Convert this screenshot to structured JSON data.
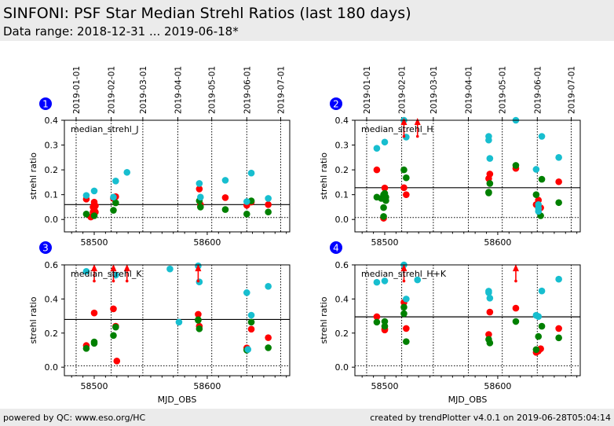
{
  "header": {
    "title": "SINFONI: PSF Star Median Strehl Ratios (last 180 days)",
    "subtitle": "Data range: 2018-12-31 ... 2019-06-18*"
  },
  "footer": {
    "left": "powered by QC: www.eso.org/HC",
    "right": "created by trendPlotter v4.0.1 on 2019-06-28T05:04:14"
  },
  "colors": {
    "series_red": "#ff0000",
    "series_green": "#008000",
    "series_cyan": "#17becf",
    "badge": "#0000ff"
  },
  "chart_data": [
    {
      "type": "scatter",
      "badge": "1",
      "title": "median_strehl_J",
      "xlabel": "",
      "ylabel": "strehl ratio",
      "xlim": [
        58473.6,
        58673
      ],
      "ylim": [
        -0.05,
        0.4
      ],
      "yticks": [
        0.0,
        0.1,
        0.2,
        0.3,
        0.4
      ],
      "ytick_labels": [
        "0.0",
        "0.1",
        "0.2",
        "0.3",
        "0.4"
      ],
      "xticks": [
        58500,
        58600
      ],
      "xtick_labels": [
        "58500",
        "58600"
      ],
      "top_date_ticks": [
        {
          "mjd": 58484,
          "label": "2019-01-01"
        },
        {
          "mjd": 58515,
          "label": "2019-02-01"
        },
        {
          "mjd": 58543,
          "label": "2019-03-01"
        },
        {
          "mjd": 58574,
          "label": "2019-04-01"
        },
        {
          "mjd": 58604,
          "label": "2019-05-01"
        },
        {
          "mjd": 58635,
          "label": "2019-06-01"
        },
        {
          "mjd": 58665,
          "label": "2019-07-01"
        }
      ],
      "median_line": 0.06,
      "reference_line": 0.008,
      "series": [
        {
          "name": "red",
          "points": [
            [
              58493,
              0.082
            ],
            [
              58497,
              0.01
            ],
            [
              58499,
              0.05
            ],
            [
              58500,
              0.07
            ],
            [
              58500,
              0.06
            ],
            [
              58501,
              0.055
            ],
            [
              58500,
              0.04
            ],
            [
              58499,
              0.03
            ],
            [
              58501,
              0.03
            ],
            [
              58517,
              0.085
            ],
            [
              58519,
              0.092
            ],
            [
              58593,
              0.123
            ],
            [
              58594,
              0.06
            ],
            [
              58616,
              0.088
            ],
            [
              58635,
              0.057
            ],
            [
              58639,
              0.07
            ],
            [
              58654,
              0.06
            ]
          ]
        },
        {
          "name": "green",
          "points": [
            [
              58493,
              0.022
            ],
            [
              58500,
              0.015
            ],
            [
              58517,
              0.037
            ],
            [
              58519,
              0.067
            ],
            [
              58593,
              0.075
            ],
            [
              58594,
              0.05
            ],
            [
              58616,
              0.04
            ],
            [
              58635,
              0.022
            ],
            [
              58639,
              0.075
            ],
            [
              58654,
              0.03
            ]
          ]
        },
        {
          "name": "cyan",
          "points": [
            [
              58493,
              0.097
            ],
            [
              58500,
              0.115
            ],
            [
              58517,
              0.09
            ],
            [
              58519,
              0.155
            ],
            [
              58529,
              0.19
            ],
            [
              58593,
              0.145
            ],
            [
              58594,
              0.09
            ],
            [
              58616,
              0.158
            ],
            [
              58635,
              0.072
            ],
            [
              58639,
              0.187
            ],
            [
              58654,
              0.085
            ]
          ]
        }
      ],
      "upper_limit_arrows": []
    },
    {
      "type": "scatter",
      "badge": "2",
      "title": "median_strehl_H",
      "xlabel": "",
      "ylabel": "strehl ratio",
      "xlim": [
        58473.6,
        58673
      ],
      "ylim": [
        -0.05,
        0.4
      ],
      "yticks": [
        0.0,
        0.1,
        0.2,
        0.3,
        0.4
      ],
      "ytick_labels": [
        "0.0",
        "0.1",
        "0.2",
        "0.3",
        "0.4"
      ],
      "xticks": [
        58500,
        58600
      ],
      "xtick_labels": [
        "58500",
        "58600"
      ],
      "top_date_ticks": [
        {
          "mjd": 58484,
          "label": "2019-01-01"
        },
        {
          "mjd": 58515,
          "label": "2019-02-01"
        },
        {
          "mjd": 58543,
          "label": "2019-03-01"
        },
        {
          "mjd": 58574,
          "label": "2019-04-01"
        },
        {
          "mjd": 58604,
          "label": "2019-05-01"
        },
        {
          "mjd": 58635,
          "label": "2019-06-01"
        },
        {
          "mjd": 58665,
          "label": "2019-07-01"
        }
      ],
      "median_line": 0.128,
      "reference_line": 0.008,
      "series": [
        {
          "name": "red",
          "points": [
            [
              58493,
              0.2
            ],
            [
              58500,
              0.127
            ],
            [
              58499,
              0.005
            ],
            [
              58517,
              0.128
            ],
            [
              58519,
              0.1
            ],
            [
              58592,
              0.165
            ],
            [
              58593,
              0.183
            ],
            [
              58616,
              0.206
            ],
            [
              58634,
              0.06
            ],
            [
              58636,
              0.078
            ],
            [
              58638,
              0.047
            ],
            [
              58654,
              0.152
            ]
          ]
        },
        {
          "name": "green",
          "points": [
            [
              58493,
              0.09
            ],
            [
              58497,
              0.085
            ],
            [
              58499,
              0.1
            ],
            [
              58500,
              0.105
            ],
            [
              58501,
              0.09
            ],
            [
              58501,
              0.076
            ],
            [
              58499,
              0.048
            ],
            [
              58499,
              0.012
            ],
            [
              58517,
              0.2
            ],
            [
              58519,
              0.168
            ],
            [
              58593,
              0.145
            ],
            [
              58592,
              0.11
            ],
            [
              58592,
              0.107
            ],
            [
              58616,
              0.218
            ],
            [
              58634,
              0.1
            ],
            [
              58639,
              0.162
            ],
            [
              58638,
              0.015
            ],
            [
              58654,
              0.068
            ]
          ]
        },
        {
          "name": "cyan",
          "points": [
            [
              58493,
              0.287
            ],
            [
              58500,
              0.312
            ],
            [
              58517,
              0.4
            ],
            [
              58519,
              0.332
            ],
            [
              58592,
              0.335
            ],
            [
              58592,
              0.32
            ],
            [
              58593,
              0.246
            ],
            [
              58616,
              0.4
            ],
            [
              58634,
              0.202
            ],
            [
              58639,
              0.335
            ],
            [
              58636,
              0.06
            ],
            [
              58636,
              0.045
            ],
            [
              58636,
              0.033
            ],
            [
              58654,
              0.25
            ]
          ]
        }
      ],
      "upper_limit_arrows": [
        {
          "x": 58517,
          "from": 0.335,
          "to": 0.4
        },
        {
          "x": 58529,
          "from": 0.335,
          "to": 0.4
        }
      ]
    },
    {
      "type": "scatter",
      "badge": "3",
      "title": "median_strehl_K",
      "xlabel": "MJD_OBS",
      "ylabel": "strehl ratio",
      "xlim": [
        58473.6,
        58673
      ],
      "ylim": [
        -0.05,
        0.6
      ],
      "yticks": [
        0.0,
        0.2,
        0.4,
        0.6
      ],
      "ytick_labels": [
        "0.0",
        "0.2",
        "0.4",
        "0.6"
      ],
      "xticks": [
        58500,
        58600
      ],
      "xtick_labels": [
        "58500",
        "58600"
      ],
      "top_date_ticks": [],
      "median_line": 0.28,
      "reference_line": 0.008,
      "series": [
        {
          "name": "red",
          "points": [
            [
              58493,
              0.127
            ],
            [
              58500,
              0.318
            ],
            [
              58517,
              0.342
            ],
            [
              58519,
              0.24
            ],
            [
              58520,
              0.036
            ],
            [
              58592,
              0.31
            ],
            [
              58593,
              0.24
            ],
            [
              58635,
              0.113
            ],
            [
              58639,
              0.223
            ],
            [
              58654,
              0.173
            ]
          ]
        },
        {
          "name": "green",
          "points": [
            [
              58493,
              0.11
            ],
            [
              58500,
              0.148
            ],
            [
              58500,
              0.14
            ],
            [
              58517,
              0.186
            ],
            [
              58519,
              0.235
            ],
            [
              58592,
              0.278
            ],
            [
              58592,
              0.275
            ],
            [
              58593,
              0.225
            ],
            [
              58635,
              0.1
            ],
            [
              58639,
              0.264
            ],
            [
              58654,
              0.114
            ]
          ]
        },
        {
          "name": "cyan",
          "points": [
            [
              58493,
              0.562
            ],
            [
              58519,
              0.54
            ],
            [
              58567,
              0.576
            ],
            [
              58575,
              0.264
            ],
            [
              58592,
              0.594
            ],
            [
              58593,
              0.5
            ],
            [
              58635,
              0.437
            ],
            [
              58639,
              0.305
            ],
            [
              58636,
              0.104
            ],
            [
              58654,
              0.474
            ]
          ]
        }
      ],
      "upper_limit_arrows": [
        {
          "x": 58500,
          "from": 0.505,
          "to": 0.59
        },
        {
          "x": 58517,
          "from": 0.505,
          "to": 0.59
        },
        {
          "x": 58529,
          "from": 0.505,
          "to": 0.59
        },
        {
          "x": 58592,
          "from": 0.505,
          "to": 0.59
        }
      ]
    },
    {
      "type": "scatter",
      "badge": "4",
      "title": "median_strehl_H+K",
      "xlabel": "MJD_OBS",
      "ylabel": "strehl ratio",
      "xlim": [
        58473.6,
        58673
      ],
      "ylim": [
        -0.05,
        0.6
      ],
      "yticks": [
        0.0,
        0.2,
        0.4,
        0.6
      ],
      "ytick_labels": [
        "0.0",
        "0.2",
        "0.4",
        "0.6"
      ],
      "xticks": [
        58500,
        58600
      ],
      "xtick_labels": [
        "58500",
        "58600"
      ],
      "top_date_ticks": [],
      "median_line": 0.295,
      "reference_line": 0.008,
      "series": [
        {
          "name": "red",
          "points": [
            [
              58493,
              0.296
            ],
            [
              58500,
              0.225
            ],
            [
              58500,
              0.218
            ],
            [
              58517,
              0.38
            ],
            [
              58519,
              0.227
            ],
            [
              58592,
              0.192
            ],
            [
              58593,
              0.323
            ],
            [
              58616,
              0.346
            ],
            [
              58634,
              0.087
            ],
            [
              58636,
              0.095
            ],
            [
              58638,
              0.108
            ],
            [
              58654,
              0.227
            ]
          ]
        },
        {
          "name": "green",
          "points": [
            [
              58493,
              0.264
            ],
            [
              58500,
              0.268
            ],
            [
              58500,
              0.24
            ],
            [
              58517,
              0.352
            ],
            [
              58517,
              0.314
            ],
            [
              58519,
              0.15
            ],
            [
              58592,
              0.163
            ],
            [
              58593,
              0.142
            ],
            [
              58616,
              0.268
            ],
            [
              58634,
              0.103
            ],
            [
              58636,
              0.18
            ],
            [
              58639,
              0.24
            ],
            [
              58654,
              0.172
            ]
          ]
        },
        {
          "name": "cyan",
          "points": [
            [
              58493,
              0.498
            ],
            [
              58500,
              0.506
            ],
            [
              58517,
              0.6
            ],
            [
              58519,
              0.4
            ],
            [
              58529,
              0.512
            ],
            [
              58592,
              0.446
            ],
            [
              58592,
              0.437
            ],
            [
              58593,
              0.405
            ],
            [
              58634,
              0.304
            ],
            [
              58636,
              0.297
            ],
            [
              58639,
              0.447
            ],
            [
              58654,
              0.516
            ]
          ]
        }
      ],
      "upper_limit_arrows": [
        {
          "x": 58517,
          "from": 0.505,
          "to": 0.59
        },
        {
          "x": 58616,
          "from": 0.505,
          "to": 0.59
        }
      ]
    }
  ]
}
